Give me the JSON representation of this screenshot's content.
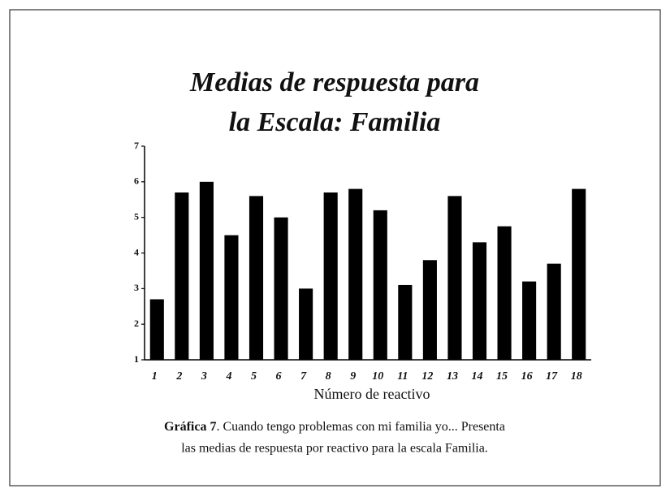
{
  "chart_data": {
    "type": "bar",
    "title": [
      "Medias de respuesta para",
      "la Escala: Familia"
    ],
    "x_label": "Número de reactivo",
    "categories": [
      "1",
      "2",
      "3",
      "4",
      "5",
      "6",
      "7",
      "8",
      "9",
      "10",
      "11",
      "12",
      "13",
      "14",
      "15",
      "16",
      "17",
      "18"
    ],
    "values": [
      2.7,
      5.7,
      6.0,
      4.5,
      5.6,
      5.0,
      3.0,
      5.7,
      5.8,
      5.2,
      3.1,
      3.8,
      5.6,
      4.3,
      4.75,
      3.2,
      3.7,
      5.8
    ],
    "color": "#000000",
    "ylim": [
      1,
      7
    ],
    "yticks": [
      1,
      2,
      3,
      4,
      5,
      6,
      7
    ],
    "grid": false,
    "caption": {
      "label": "Gráfica 7",
      "line1": ". Cuando tengo problemas con mi familia yo... Presenta",
      "line2": "las medias de respuesta por reactivo para la escala Familia."
    }
  }
}
